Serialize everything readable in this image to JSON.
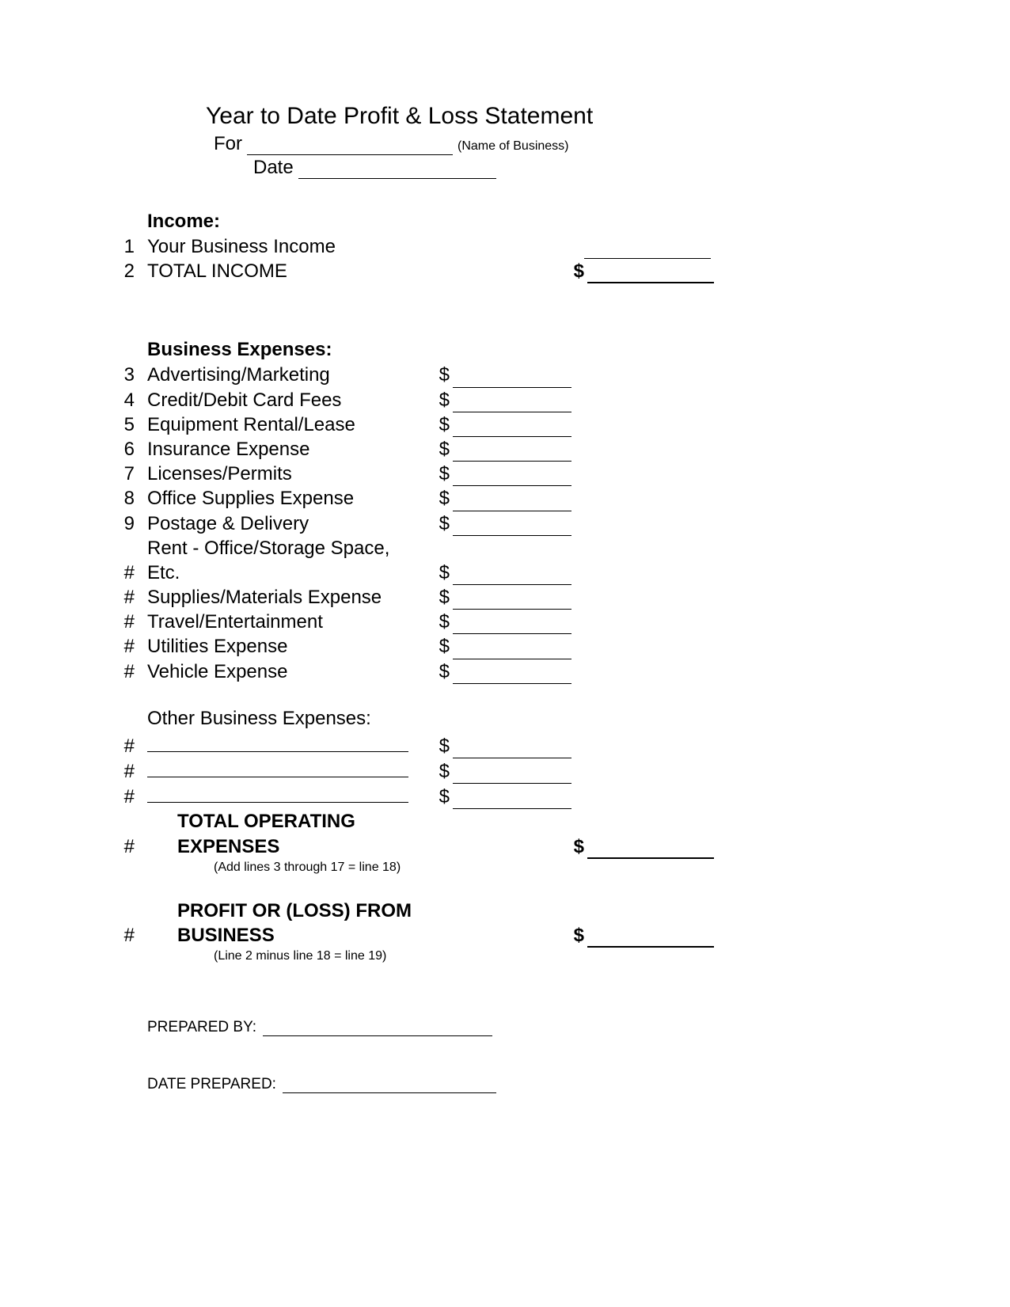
{
  "header": {
    "title": "Year to Date Profit & Loss Statement",
    "for_label": "For",
    "for_note": "(Name of Business)",
    "date_label": "Date"
  },
  "income": {
    "heading": "Income:",
    "rows": [
      {
        "num": "1",
        "label": "Your Business Income"
      },
      {
        "num": "2",
        "label": "TOTAL INCOME"
      }
    ]
  },
  "expenses": {
    "heading": "Business Expenses:",
    "rows": [
      {
        "num": "3",
        "label": "Advertising/Marketing"
      },
      {
        "num": "4",
        "label": "Credit/Debit Card Fees"
      },
      {
        "num": "5",
        "label": "Equipment Rental/Lease"
      },
      {
        "num": "6",
        "label": "Insurance Expense"
      },
      {
        "num": "7",
        "label": "Licenses/Permits"
      },
      {
        "num": "8",
        "label": "Office Supplies Expense"
      },
      {
        "num": "9",
        "label": "Postage & Delivery"
      },
      {
        "num": "#",
        "label": "Rent - Office/Storage Space, Etc."
      },
      {
        "num": "#",
        "label": "Supplies/Materials Expense"
      },
      {
        "num": "#",
        "label": "Travel/Entertainment"
      },
      {
        "num": "#",
        "label": "Utilities Expense"
      },
      {
        "num": "#",
        "label": "Vehicle Expense"
      }
    ],
    "other_heading": "Other Business Expenses:",
    "other_rows": [
      {
        "num": "#"
      },
      {
        "num": "#"
      },
      {
        "num": "#"
      }
    ],
    "total": {
      "num": "#",
      "label": "TOTAL OPERATING EXPENSES",
      "hint": "(Add lines 3 through 17 = line 18)"
    }
  },
  "profit": {
    "num": "#",
    "label": "PROFIT OR (LOSS) FROM BUSINESS",
    "hint": "(Line 2 minus line 18 = line 19)"
  },
  "footer": {
    "prepared_by": "PREPARED BY:",
    "date_prepared": "DATE PREPARED:"
  },
  "dollar": "$"
}
